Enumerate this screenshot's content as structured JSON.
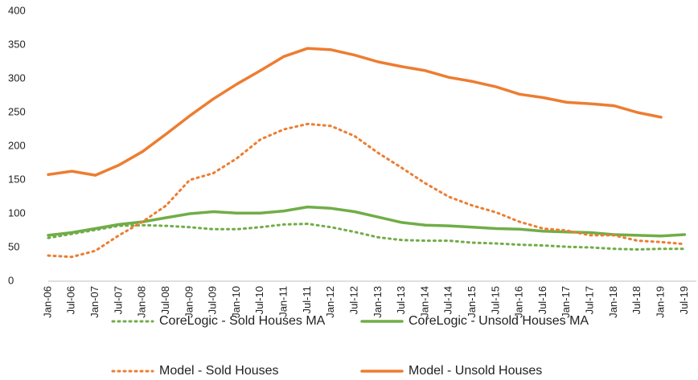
{
  "chart_data": {
    "type": "line",
    "categories": [
      "Jan-06",
      "Jul-06",
      "Jan-07",
      "Jul-07",
      "Jan-08",
      "Jul-08",
      "Jan-09",
      "Jul-09",
      "Jan-10",
      "Jul-10",
      "Jan-11",
      "Jul-11",
      "Jan-12",
      "Jul-12",
      "Jan-13",
      "Jul-13",
      "Jan-14",
      "Jul-14",
      "Jan-15",
      "Jul-15",
      "Jan-16",
      "Jul-16",
      "Jan-17",
      "Jul-17",
      "Jan-18",
      "Jul-18",
      "Jan-19",
      "Jul-19"
    ],
    "series": [
      {
        "name": "CoreLogic - Sold Houses MA",
        "color": "#70ad47",
        "dash": "dotted",
        "values": [
          64,
          70,
          76,
          82,
          83,
          82,
          80,
          77,
          77,
          80,
          84,
          85,
          80,
          73,
          65,
          61,
          60,
          60,
          57,
          56,
          54,
          53,
          51,
          50,
          48,
          47,
          48,
          48
        ]
      },
      {
        "name": "CoreLogic - Unsold Houses MA",
        "color": "#70ad47",
        "dash": "solid",
        "values": [
          68,
          72,
          78,
          84,
          88,
          94,
          100,
          103,
          101,
          101,
          104,
          110,
          108,
          103,
          95,
          87,
          83,
          82,
          80,
          78,
          77,
          74,
          73,
          72,
          69,
          68,
          67,
          69
        ]
      },
      {
        "name": "Model - Sold Houses",
        "color": "#ed7d31",
        "dash": "dotted",
        "values": [
          38,
          36,
          45,
          68,
          88,
          112,
          150,
          160,
          182,
          210,
          225,
          233,
          230,
          215,
          190,
          168,
          145,
          125,
          112,
          102,
          88,
          78,
          75,
          68,
          68,
          60,
          58,
          55
        ]
      },
      {
        "name": "Model - Unsold Houses",
        "color": "#ed7d31",
        "dash": "solid",
        "values": [
          158,
          163,
          157,
          172,
          192,
          218,
          245,
          270,
          292,
          312,
          333,
          345,
          343,
          335,
          325,
          318,
          312,
          302,
          296,
          288,
          277,
          272,
          265,
          263,
          260,
          250,
          243,
          null
        ]
      }
    ],
    "ylim": [
      0,
      400
    ],
    "yticks": [
      0,
      50,
      100,
      150,
      200,
      250,
      300,
      350,
      400
    ],
    "grid": false
  }
}
